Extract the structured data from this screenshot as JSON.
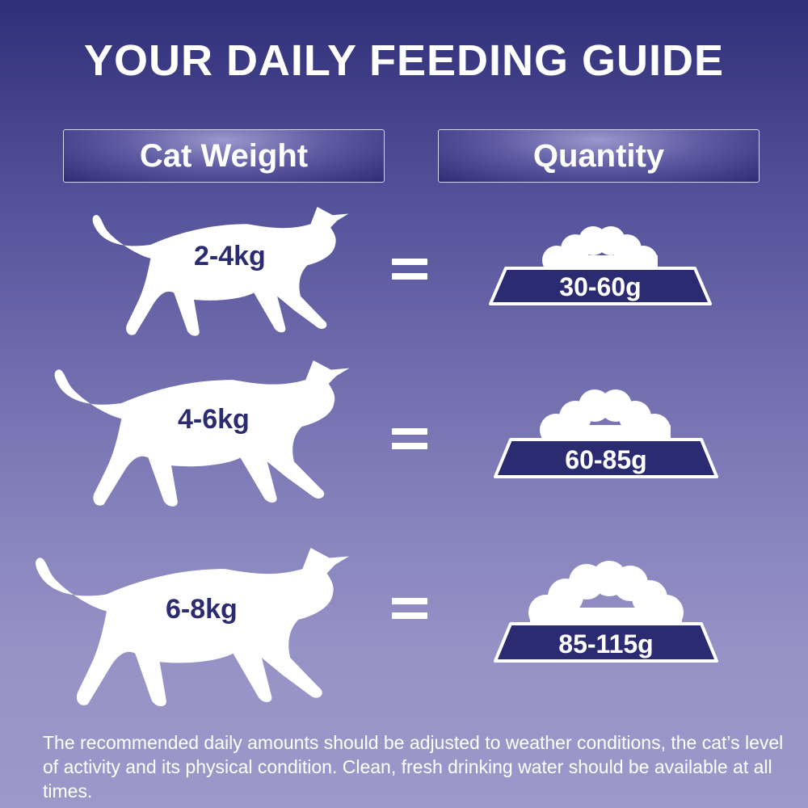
{
  "title": "YOUR DAILY FEEDING GUIDE",
  "headers": {
    "weight": "Cat Weight",
    "quantity": "Quantity"
  },
  "rows": [
    {
      "weight": "2-4kg",
      "quantity": "30-60g"
    },
    {
      "weight": "4-6kg",
      "quantity": "60-85g"
    },
    {
      "weight": "6-8kg",
      "quantity": "85-115g"
    }
  ],
  "footer": "The recommended daily amounts should be adjusted to weather conditions, the cat’s level of activity and its physical condition. Clean, fresh drinking water should be available at all times.",
  "colors": {
    "navy": "#2b2b72",
    "white": "#ffffff"
  }
}
